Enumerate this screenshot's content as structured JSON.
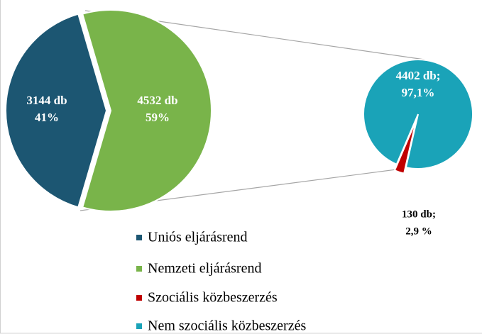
{
  "chart_data": {
    "type": "pie-of-pie",
    "pies": [
      {
        "categories": [
          "Uniós eljárásrend",
          "Nemzeti eljárásrend"
        ],
        "colors": [
          "#1c5672",
          "#79b44a"
        ],
        "values": [
          3144,
          4532
        ],
        "value_labels": [
          "3144 db",
          "4532 db"
        ],
        "percents": [
          41,
          59
        ],
        "percent_labels": [
          "41%",
          "59%"
        ]
      },
      {
        "categories": [
          "Szociális közbeszerzés",
          "Nem szociális közbeszerzés"
        ],
        "colors": [
          "#c00000",
          "#1aa3b8"
        ],
        "values": [
          130,
          4402
        ],
        "value_labels": [
          "130 db;",
          "4402 db;"
        ],
        "percents": [
          2.9,
          97.1
        ],
        "percent_labels": [
          "2,9 %",
          "97,1%"
        ]
      }
    ]
  }
}
